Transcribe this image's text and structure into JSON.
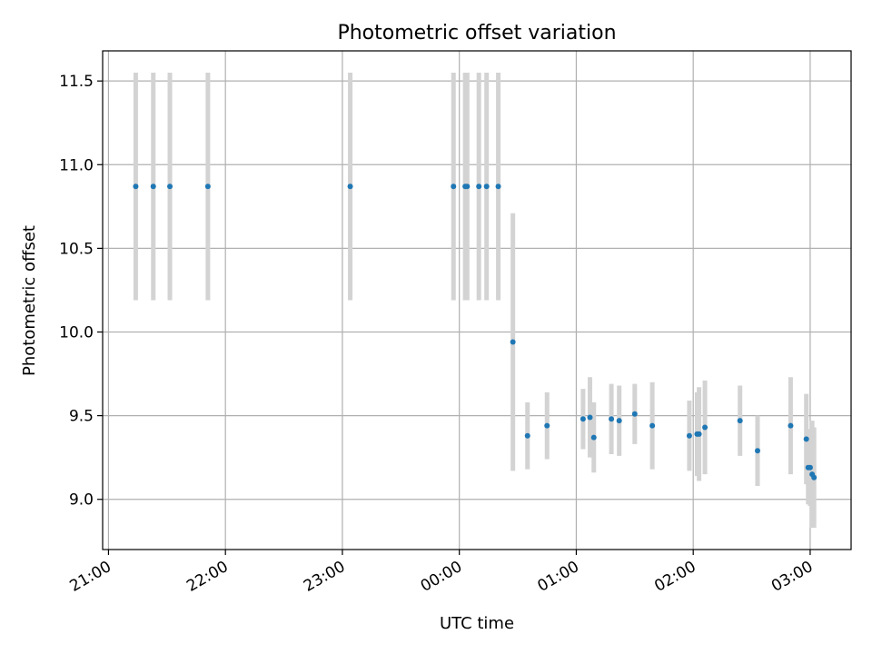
{
  "chart_data": {
    "type": "scatter",
    "title": "Photometric offset variation",
    "xlabel": "UTC time",
    "ylabel": "Photometric offset",
    "x_unit": "hours since 21:00 UTC",
    "xlim": [
      -0.05,
      6.35
    ],
    "ylim": [
      8.7,
      11.68
    ],
    "x_ticks": [
      {
        "value": 0,
        "label": "21:00"
      },
      {
        "value": 1,
        "label": "22:00"
      },
      {
        "value": 2,
        "label": "23:00"
      },
      {
        "value": 3,
        "label": "00:00"
      },
      {
        "value": 4,
        "label": "01:00"
      },
      {
        "value": 5,
        "label": "02:00"
      },
      {
        "value": 6,
        "label": "03:00"
      }
    ],
    "y_ticks": [
      {
        "value": 9.0,
        "label": "9.0"
      },
      {
        "value": 9.5,
        "label": "9.5"
      },
      {
        "value": 10.0,
        "label": "10.0"
      },
      {
        "value": 10.5,
        "label": "10.5"
      },
      {
        "value": 11.0,
        "label": "11.0"
      },
      {
        "value": 11.5,
        "label": "11.5"
      }
    ],
    "grid": true,
    "point_color": "#1f77b4",
    "errorbar_color": "#d3d3d3",
    "points": [
      {
        "x": 0.233,
        "y": 10.87,
        "err": 0.68
      },
      {
        "x": 0.383,
        "y": 10.87,
        "err": 0.68
      },
      {
        "x": 0.525,
        "y": 10.87,
        "err": 0.68
      },
      {
        "x": 0.85,
        "y": 10.87,
        "err": 0.68
      },
      {
        "x": 2.067,
        "y": 10.87,
        "err": 0.68
      },
      {
        "x": 2.95,
        "y": 10.87,
        "err": 0.68
      },
      {
        "x": 3.05,
        "y": 10.87,
        "err": 0.68
      },
      {
        "x": 3.067,
        "y": 10.87,
        "err": 0.68
      },
      {
        "x": 3.167,
        "y": 10.87,
        "err": 0.68
      },
      {
        "x": 3.233,
        "y": 10.87,
        "err": 0.68
      },
      {
        "x": 3.333,
        "y": 10.87,
        "err": 0.68
      },
      {
        "x": 3.458,
        "y": 9.94,
        "err": 0.77
      },
      {
        "x": 3.583,
        "y": 9.38,
        "err": 0.2
      },
      {
        "x": 3.75,
        "y": 9.44,
        "err": 0.2
      },
      {
        "x": 4.058,
        "y": 9.48,
        "err": 0.18
      },
      {
        "x": 4.117,
        "y": 9.49,
        "err": 0.24
      },
      {
        "x": 4.15,
        "y": 9.37,
        "err": 0.21
      },
      {
        "x": 4.3,
        "y": 9.48,
        "err": 0.21
      },
      {
        "x": 4.367,
        "y": 9.47,
        "err": 0.21
      },
      {
        "x": 4.5,
        "y": 9.51,
        "err": 0.18
      },
      {
        "x": 4.65,
        "y": 9.44,
        "err": 0.26
      },
      {
        "x": 4.967,
        "y": 9.38,
        "err": 0.21
      },
      {
        "x": 5.033,
        "y": 9.39,
        "err": 0.25
      },
      {
        "x": 5.05,
        "y": 9.39,
        "err": 0.28
      },
      {
        "x": 5.1,
        "y": 9.43,
        "err": 0.28
      },
      {
        "x": 5.4,
        "y": 9.47,
        "err": 0.21
      },
      {
        "x": 5.55,
        "y": 9.29,
        "err": 0.21
      },
      {
        "x": 5.833,
        "y": 9.44,
        "err": 0.29
      },
      {
        "x": 5.967,
        "y": 9.36,
        "err": 0.27
      },
      {
        "x": 5.983,
        "y": 9.19,
        "err": 0.22
      },
      {
        "x": 6.0,
        "y": 9.19,
        "err": 0.23
      },
      {
        "x": 6.017,
        "y": 9.15,
        "err": 0.32
      },
      {
        "x": 6.033,
        "y": 9.13,
        "err": 0.3
      }
    ]
  }
}
